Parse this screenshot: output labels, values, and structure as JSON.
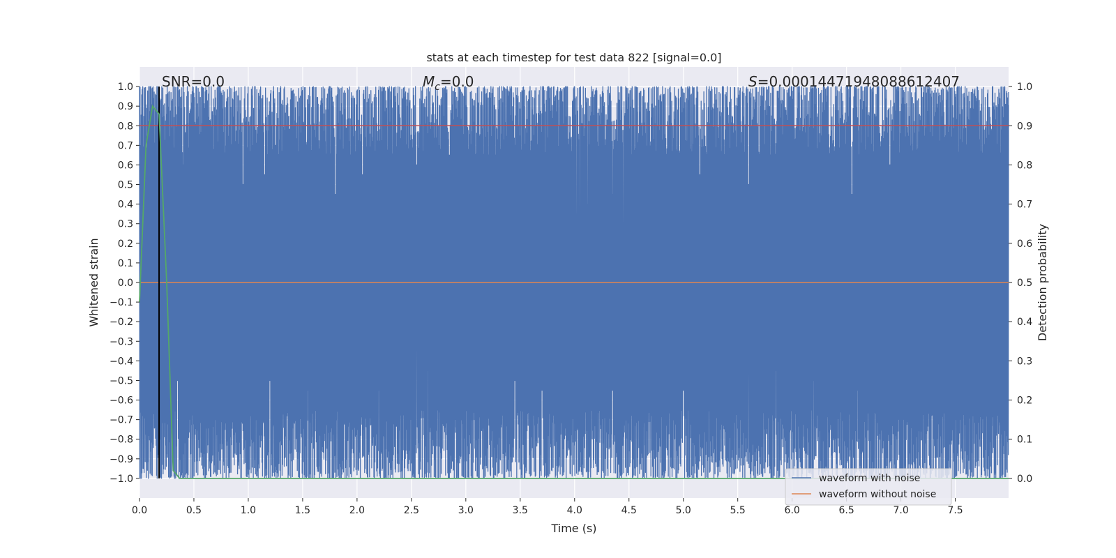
{
  "chart_data": {
    "type": "line",
    "title": "stats at each timestep for test data 822 [signal=0.0]",
    "xlabel": "Time (s)",
    "ylabel_left": "Whitened strain",
    "ylabel_right": "Detection probability",
    "xlim": [
      0,
      7.99
    ],
    "ylim_left": [
      -1.1,
      1.1
    ],
    "ylim_right": [
      -0.05,
      1.05
    ],
    "x_ticks": [
      "0.0",
      "0.5",
      "1.0",
      "1.5",
      "2.0",
      "2.5",
      "3.0",
      "3.5",
      "4.0",
      "4.5",
      "5.0",
      "5.5",
      "6.0",
      "6.5",
      "7.0",
      "7.5"
    ],
    "y_ticks_left": [
      "1.0",
      "0.9",
      "0.8",
      "0.7",
      "0.6",
      "0.5",
      "0.4",
      "0.3",
      "0.2",
      "0.1",
      "0.0",
      "−0.1",
      "−0.2",
      "−0.3",
      "−0.4",
      "−0.5",
      "−0.6",
      "−0.7",
      "−0.8",
      "−0.9",
      "−1.0"
    ],
    "y_ticks_right": [
      "1.0",
      "0.9",
      "0.8",
      "0.7",
      "0.6",
      "0.5",
      "0.4",
      "0.3",
      "0.2",
      "0.1",
      "0.0"
    ],
    "grid": true,
    "legend_position": "lower-right",
    "annotations": {
      "snr_prefix": "SNR=0.0",
      "mc_symbol": "M",
      "mc_subscript": "c",
      "mc_value": "=0.0",
      "s_symbol": "S",
      "s_value": "=0.00014471948088612407"
    },
    "series": [
      {
        "name": "waveform with noise",
        "axis": "left",
        "color": "#4c72b0",
        "description_level": "dense noise spanning approximately -1.0 to 1.0 across all time",
        "envelope_upper": 1.0,
        "envelope_lower": -1.0,
        "dip_times": [
          0.4,
          0.95,
          1.15,
          1.25,
          1.8,
          2.05,
          2.55,
          2.85,
          3.45,
          4.02,
          4.05,
          4.12,
          4.35,
          4.45,
          5.15,
          5.6,
          6.55,
          6.9
        ],
        "dip_levels": [
          0.6,
          0.5,
          0.55,
          0.7,
          0.45,
          0.55,
          0.6,
          0.65,
          0.7,
          0.35,
          0.32,
          0.4,
          0.45,
          0.3,
          0.55,
          0.5,
          0.45,
          0.6
        ],
        "spike_times": [
          0.35,
          1.2,
          1.55,
          2.2,
          2.55,
          2.65,
          3.45,
          3.7,
          4.35,
          5.0,
          5.6,
          5.85,
          6.2,
          6.6
        ],
        "spike_levels": [
          -0.5,
          -0.5,
          -0.55,
          -0.55,
          -0.35,
          -0.45,
          -0.5,
          -0.55,
          -0.55,
          -0.55,
          -0.28,
          -0.45,
          -0.5,
          -0.55
        ]
      },
      {
        "name": "waveform without noise",
        "axis": "left",
        "color": "#dd8452",
        "x": [
          0,
          7.99
        ],
        "y": [
          0.0,
          0.0
        ]
      },
      {
        "name": "",
        "axis": "right",
        "color": "#55a868",
        "x": [
          0.0,
          0.06,
          0.12,
          0.18,
          0.25,
          0.31,
          0.37,
          0.5,
          1.0,
          7.99
        ],
        "y": [
          0.45,
          0.85,
          0.95,
          0.93,
          0.5,
          0.02,
          0.0,
          0.0,
          0.0,
          0.0
        ]
      }
    ],
    "reference_lines": [
      {
        "kind": "horizontal",
        "axis": "right",
        "value": 0.9,
        "color": "#c44e52"
      },
      {
        "kind": "vertical",
        "x": 0.18,
        "color": "#000000"
      }
    ]
  }
}
